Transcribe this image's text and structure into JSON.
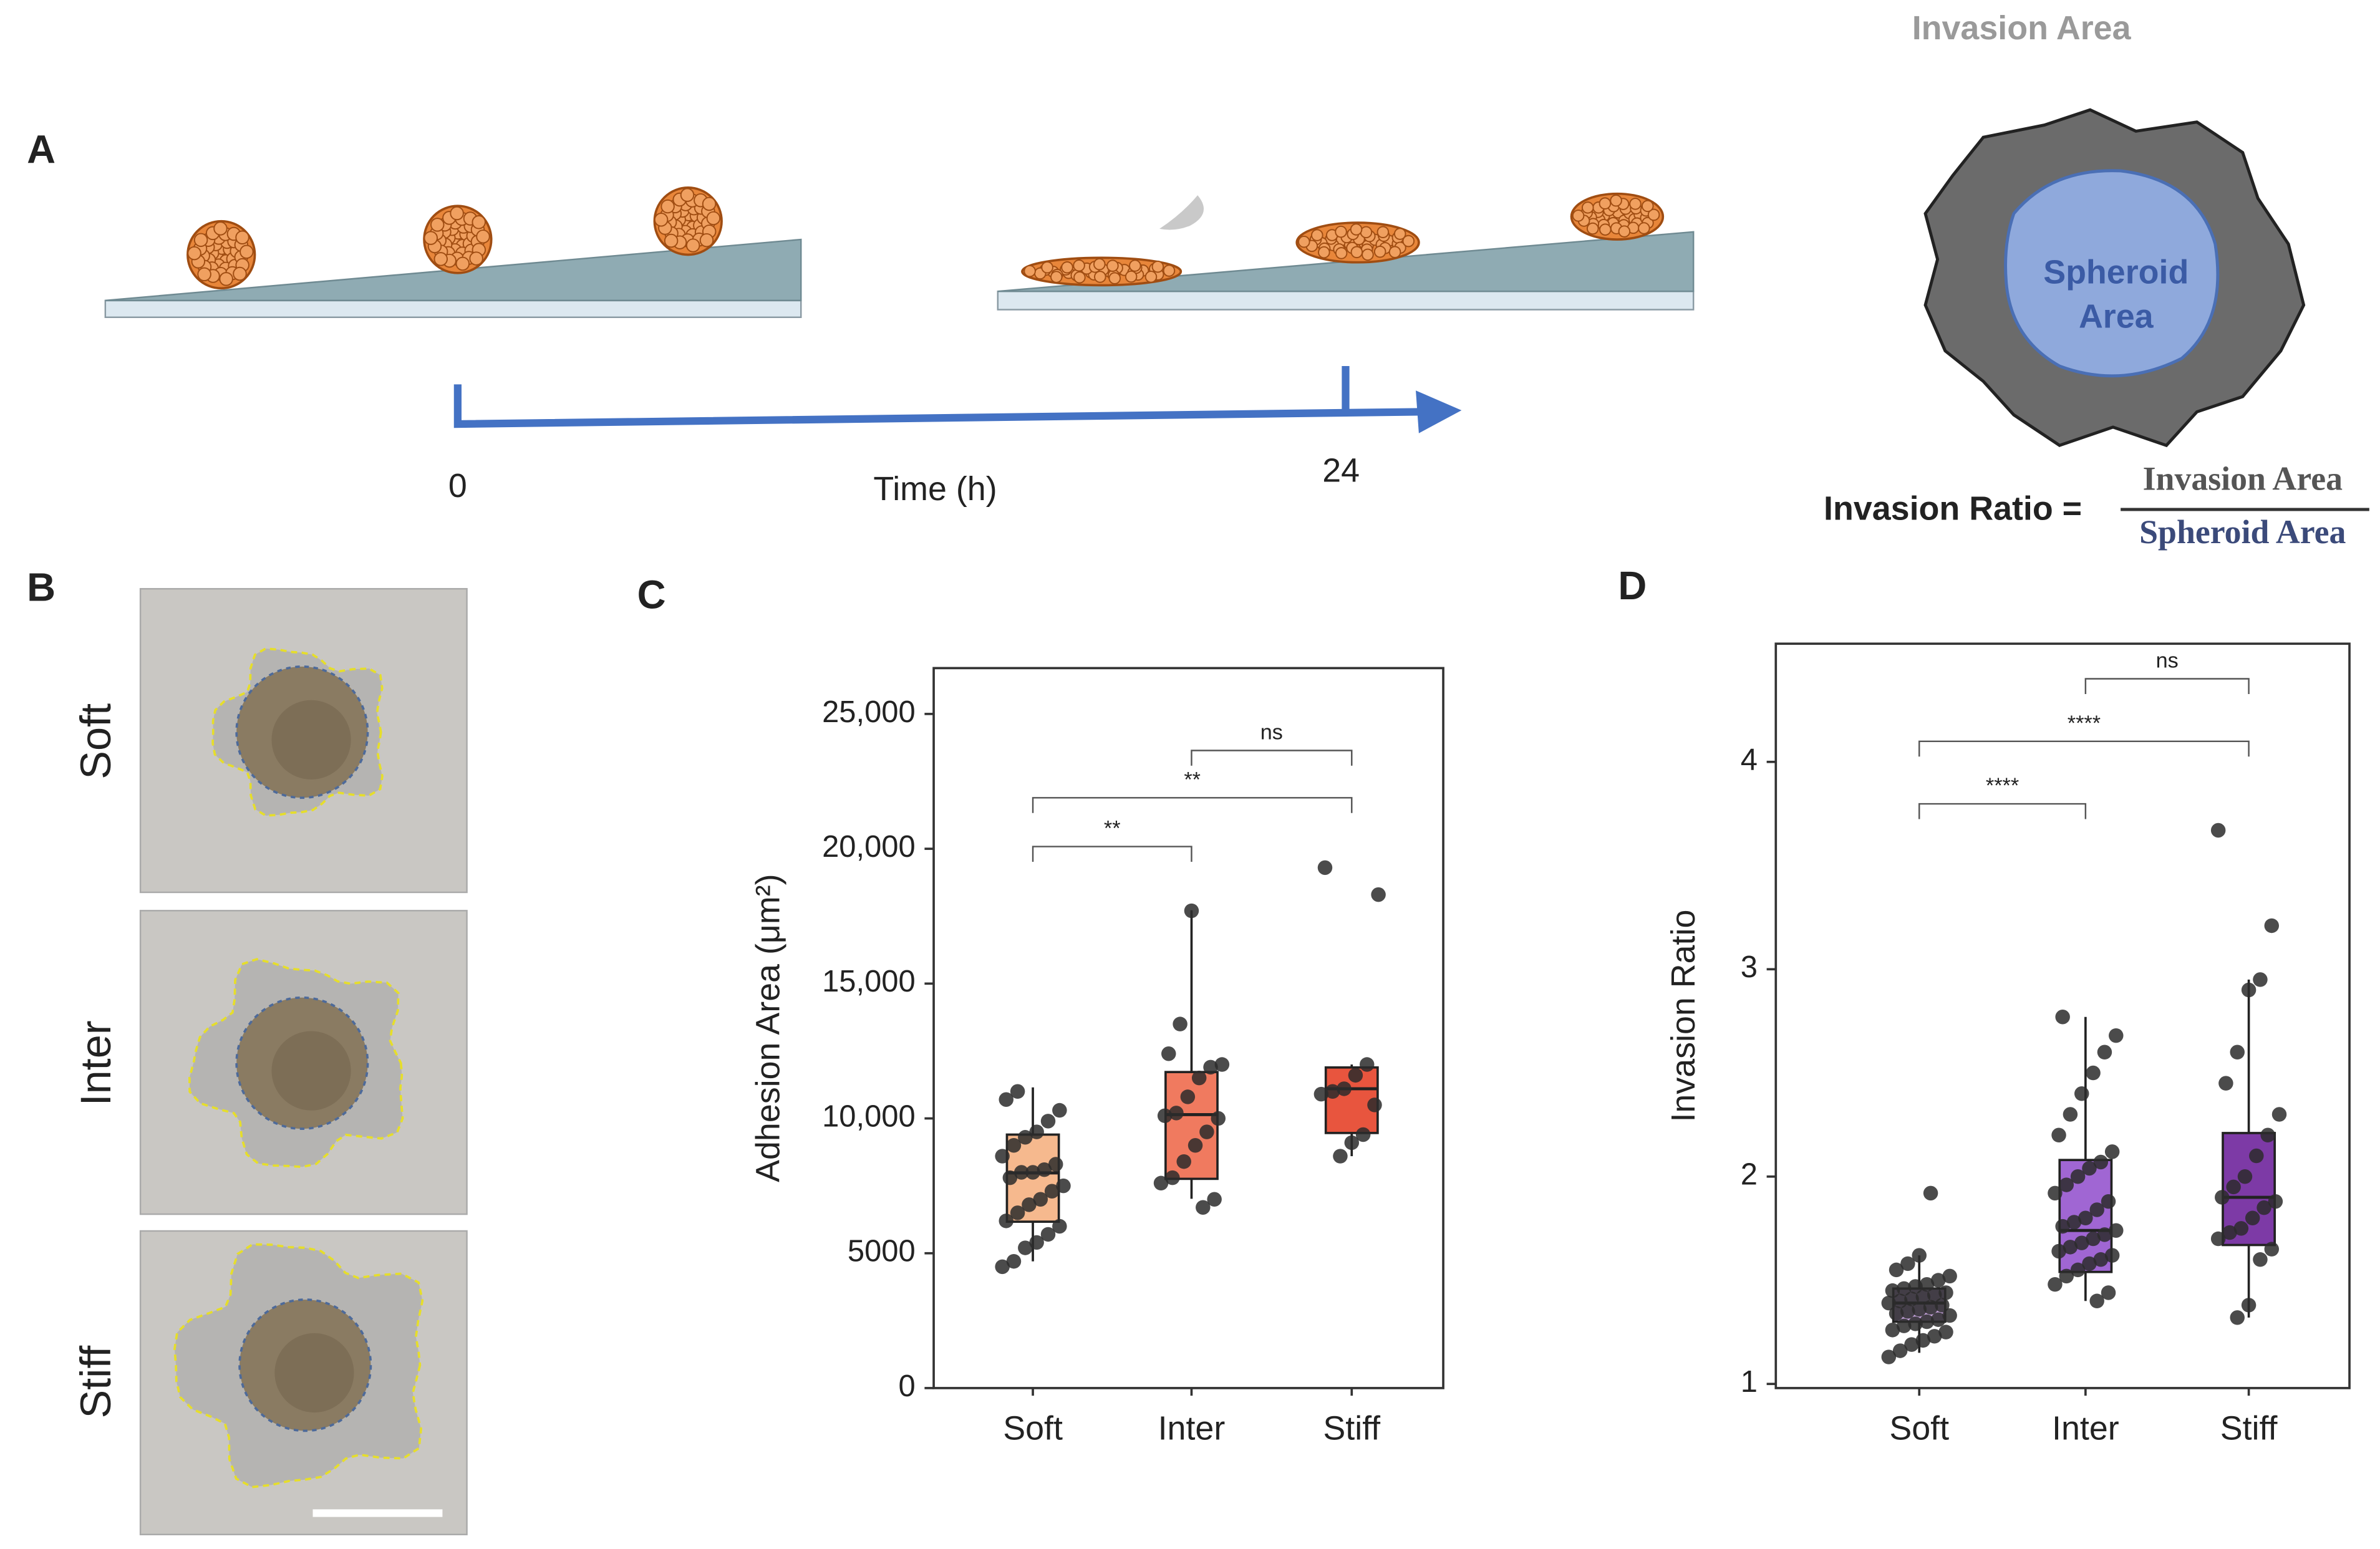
{
  "panels": {
    "A": {
      "label": "A",
      "time_start": "0",
      "time_end": "24",
      "time_label": "Time (h)",
      "invasion_area_label": "Invasion Area",
      "spheroid_area_label": [
        "Spheroid",
        "Area"
      ],
      "ratio_label": "Invasion Ratio =",
      "numerator": "Invasion Area",
      "denominator": "Spheroid Area"
    },
    "B": {
      "label": "B",
      "rows": [
        "Soft",
        "Inter",
        "Stiff"
      ]
    }
  },
  "chart_data": [
    {
      "type": "box",
      "panel_label": "C",
      "ylabel": "Adhesion Area (μm²)",
      "categories": [
        "Soft",
        "Inter",
        "Stiff"
      ],
      "colors": [
        "#f6b98e",
        "#f07a5f",
        "#e8553e"
      ],
      "boxes": [
        {
          "min": 4700,
          "q1": 6170,
          "median": 7980,
          "q3": 9400,
          "max": 11150
        },
        {
          "min": 7020,
          "q1": 7760,
          "median": 10140,
          "q3": 11720,
          "max": 17720
        },
        {
          "min": 8600,
          "q1": 9460,
          "median": 11100,
          "q3": 11890,
          "max": 12000
        }
      ],
      "points": [
        [
          4500,
          4700,
          5200,
          5400,
          5700,
          6000,
          6200,
          6500,
          6800,
          7000,
          7300,
          7500,
          7800,
          8000,
          8000,
          8100,
          8300,
          8600,
          9000,
          9300,
          9500,
          9900,
          10300,
          10700,
          11000
        ],
        [
          6700,
          7000,
          7600,
          7800,
          8400,
          9000,
          9500,
          10000,
          10100,
          10200,
          10800,
          11500,
          11900,
          12000,
          12400,
          13500,
          17700
        ],
        [
          8600,
          9100,
          9400,
          10500,
          10900,
          11000,
          11100,
          11600,
          12000,
          18300,
          19300
        ]
      ],
      "ylim": [
        0,
        26700
      ],
      "yticks": [
        0,
        5000,
        {
          "value": 10000,
          "label": "10,000"
        },
        {
          "value": 15000,
          "label": "15,000"
        },
        {
          "value": 20000,
          "label": "20,000"
        },
        {
          "value": 25000,
          "label": "25,000"
        }
      ],
      "annotations": [
        {
          "label": "**",
          "pair": [
            "Soft",
            "Inter"
          ]
        },
        {
          "label": "**",
          "pair": [
            "Soft",
            "Stiff"
          ]
        },
        {
          "label": "ns",
          "pair": [
            "Inter",
            "Stiff"
          ]
        }
      ]
    },
    {
      "type": "box",
      "panel_label": "D",
      "ylabel": "Invasion Ratio",
      "categories": [
        "Soft",
        "Inter",
        "Stiff"
      ],
      "colors": [
        "#c9a6e0",
        "#a066d3",
        "#7d3aa6"
      ],
      "boxes": [
        {
          "min": 1.15,
          "q1": 1.3,
          "median": 1.39,
          "q3": 1.46,
          "max": 1.62
        },
        {
          "min": 1.4,
          "q1": 1.54,
          "median": 1.74,
          "q3": 2.08,
          "max": 2.77
        },
        {
          "min": 1.32,
          "q1": 1.67,
          "median": 1.9,
          "q3": 2.21,
          "max": 2.95
        }
      ],
      "points": [
        [
          1.13,
          1.16,
          1.19,
          1.21,
          1.23,
          1.25,
          1.26,
          1.28,
          1.29,
          1.3,
          1.31,
          1.33,
          1.34,
          1.35,
          1.36,
          1.37,
          1.38,
          1.39,
          1.4,
          1.41,
          1.42,
          1.43,
          1.44,
          1.45,
          1.46,
          1.47,
          1.48,
          1.5,
          1.52,
          1.55,
          1.58,
          1.62,
          1.92
        ],
        [
          1.4,
          1.44,
          1.48,
          1.52,
          1.55,
          1.58,
          1.6,
          1.62,
          1.64,
          1.66,
          1.68,
          1.7,
          1.72,
          1.74,
          1.76,
          1.78,
          1.8,
          1.84,
          1.88,
          1.92,
          1.96,
          2.0,
          2.04,
          2.07,
          2.12,
          2.2,
          2.3,
          2.4,
          2.5,
          2.6,
          2.68,
          2.77
        ],
        [
          1.32,
          1.38,
          1.6,
          1.65,
          1.7,
          1.73,
          1.75,
          1.8,
          1.85,
          1.88,
          1.9,
          1.95,
          2.0,
          2.1,
          2.2,
          2.3,
          2.45,
          2.6,
          2.9,
          2.95,
          3.21,
          3.67
        ]
      ],
      "ylim": [
        0.98,
        4.57
      ],
      "yticks": [
        1,
        2,
        3,
        4
      ],
      "annotations": [
        {
          "label": "****",
          "pair": [
            "Soft",
            "Inter"
          ]
        },
        {
          "label": "****",
          "pair": [
            "Soft",
            "Stiff"
          ]
        },
        {
          "label": "ns",
          "pair": [
            "Inter",
            "Stiff"
          ]
        }
      ]
    }
  ]
}
